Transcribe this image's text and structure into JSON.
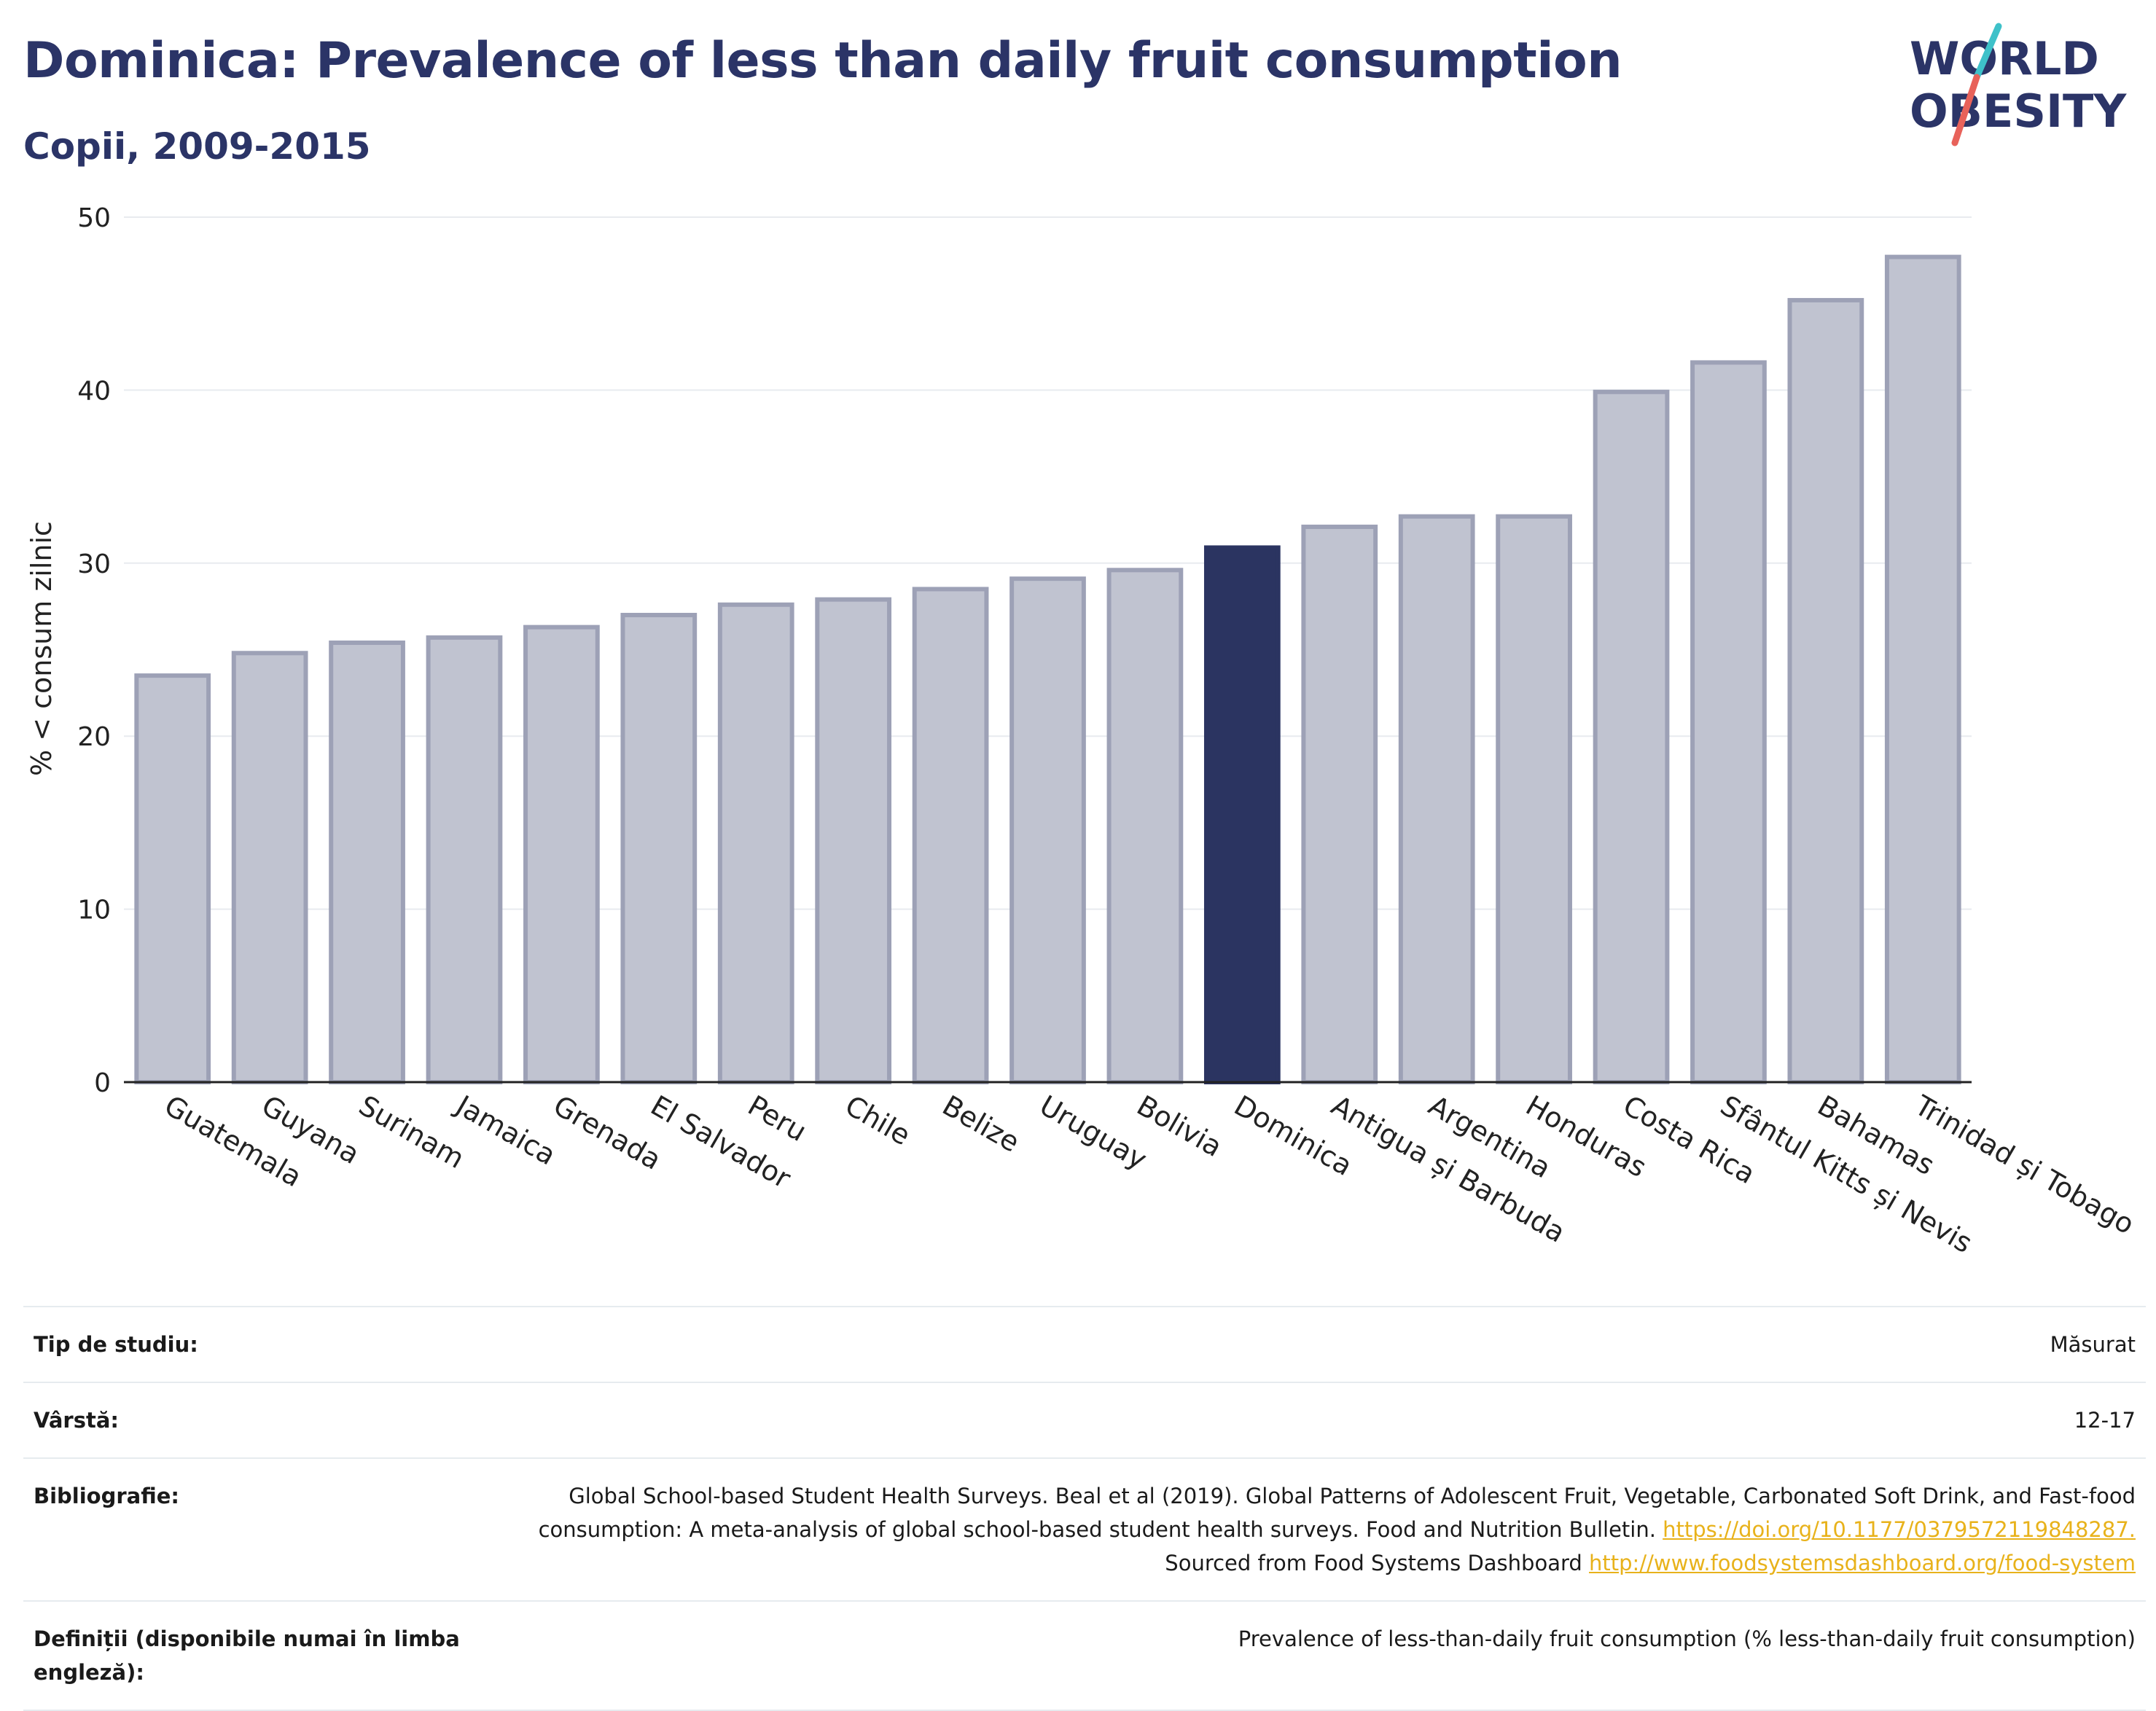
{
  "title": "Dominica: Prevalence of less than daily fruit consumption",
  "subtitle": "Copii, 2009-2015",
  "logo": {
    "line1": "WORLD",
    "line2": "OBESITY",
    "colors": {
      "text": "#2b3467",
      "slash_top": "#3ec1c9",
      "slash_bottom": "#e8625a"
    }
  },
  "colors": {
    "highlight": "#2b3461",
    "bar": "#c0c3d0",
    "bar_stroke": "#9da1b6",
    "grid": "#e8ebef",
    "axis_text": "#222222"
  },
  "chart_data": {
    "type": "bar",
    "categories": [
      "Guatemala",
      "Guyana",
      "Surinam",
      "Jamaica",
      "Grenada",
      "El Salvador",
      "Peru",
      "Chile",
      "Belize",
      "Uruguay",
      "Bolivia",
      "Dominica",
      "Antigua și Barbuda",
      "Argentina",
      "Honduras",
      "Costa Rica",
      "Sfântul Kitts și Nevis",
      "Bahamas",
      "Trinidad și Tobago"
    ],
    "values": [
      23.5,
      24.8,
      25.4,
      25.7,
      26.3,
      27.0,
      27.6,
      27.9,
      28.5,
      29.1,
      29.6,
      30.9,
      32.1,
      32.7,
      32.7,
      39.9,
      41.6,
      45.2,
      47.7
    ],
    "highlight": "Dominica",
    "ylabel": "% < consum zilnic",
    "ylim": [
      0,
      50
    ],
    "yticks": [
      0,
      10,
      20,
      30,
      40,
      50
    ],
    "grid": true
  },
  "info": [
    {
      "label": "Tip de studiu:",
      "value": "Măsurat"
    },
    {
      "label": "Vârstă:",
      "value": "12-17"
    },
    {
      "label": "Bibliografie:",
      "text1": "Global School-based Student Health Surveys. Beal et al (2019). Global Patterns of Adolescent Fruit, Vegetable, Carbonated Soft Drink, and Fast-food consumption: A meta-analysis of global school-based student health surveys. Food and Nutrition Bulletin.",
      "link1": "https://doi.org/10.1177/0379572119848287.",
      "text2": "Sourced from Food Systems Dashboard",
      "link2": "http://www.foodsystemsdashboard.org/food-system"
    },
    {
      "label": "Definiții (disponibile numai în limba engleză):",
      "value": "Prevalence of less-than-daily fruit consumption (% less-than-daily fruit consumption)"
    }
  ]
}
